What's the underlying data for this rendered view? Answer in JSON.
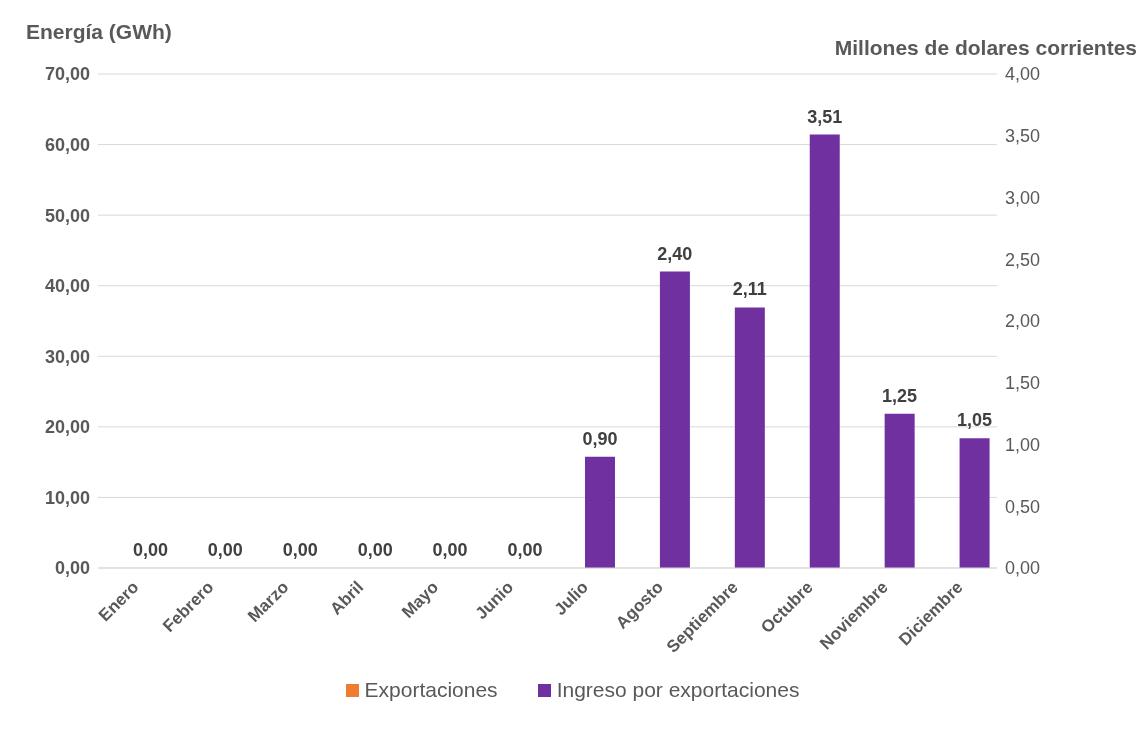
{
  "chart_data": {
    "type": "bar",
    "ylabel": "Energía (GWh)",
    "y2label": "Millones de dolares corrientes",
    "categories": [
      "Enero",
      "Febrero",
      "Marzo",
      "Abril",
      "Mayo",
      "Junio",
      "Julio",
      "Agosto",
      "Septiembre",
      "Octubre",
      "Noviembre",
      "Diciembre"
    ],
    "series": [
      {
        "name": "Exportaciones",
        "color": "#ed7d31",
        "values": [
          0,
          0,
          0,
          0,
          0,
          0,
          0,
          0,
          0,
          0,
          0,
          0
        ]
      },
      {
        "name": "Ingreso por exportaciones",
        "color": "#7030a0",
        "axis": "y2",
        "values": [
          0,
          0,
          0,
          0,
          0,
          0,
          0.9,
          2.4,
          2.11,
          3.51,
          1.25,
          1.05
        ],
        "value_labels": [
          "0,00",
          "0,00",
          "0,00",
          "0,00",
          "0,00",
          "0,00",
          "0,90",
          "2,40",
          "2,11",
          "3,51",
          "1,25",
          "1,05"
        ]
      }
    ],
    "ylim": [
      0,
      70
    ],
    "yticks": [
      {
        "value": 0,
        "label": "0,00"
      },
      {
        "value": 10,
        "label": "10,00"
      },
      {
        "value": 20,
        "label": "20,00"
      },
      {
        "value": 30,
        "label": "30,00"
      },
      {
        "value": 40,
        "label": "40,00"
      },
      {
        "value": 50,
        "label": "50,00"
      },
      {
        "value": 60,
        "label": "60,00"
      },
      {
        "value": 70,
        "label": "70,00"
      }
    ],
    "y2lim": [
      0,
      4
    ],
    "y2ticks": [
      {
        "value": 0,
        "label": "0,00"
      },
      {
        "value": 0.5,
        "label": "0,50"
      },
      {
        "value": 1,
        "label": "1,00"
      },
      {
        "value": 1.5,
        "label": "1,50"
      },
      {
        "value": 2,
        "label": "2,00"
      },
      {
        "value": 2.5,
        "label": "2,50"
      },
      {
        "value": 3,
        "label": "3,00"
      },
      {
        "value": 3.5,
        "label": "3,50"
      },
      {
        "value": 4,
        "label": "4,00"
      }
    ],
    "grid": "y",
    "legend": "bottom"
  }
}
